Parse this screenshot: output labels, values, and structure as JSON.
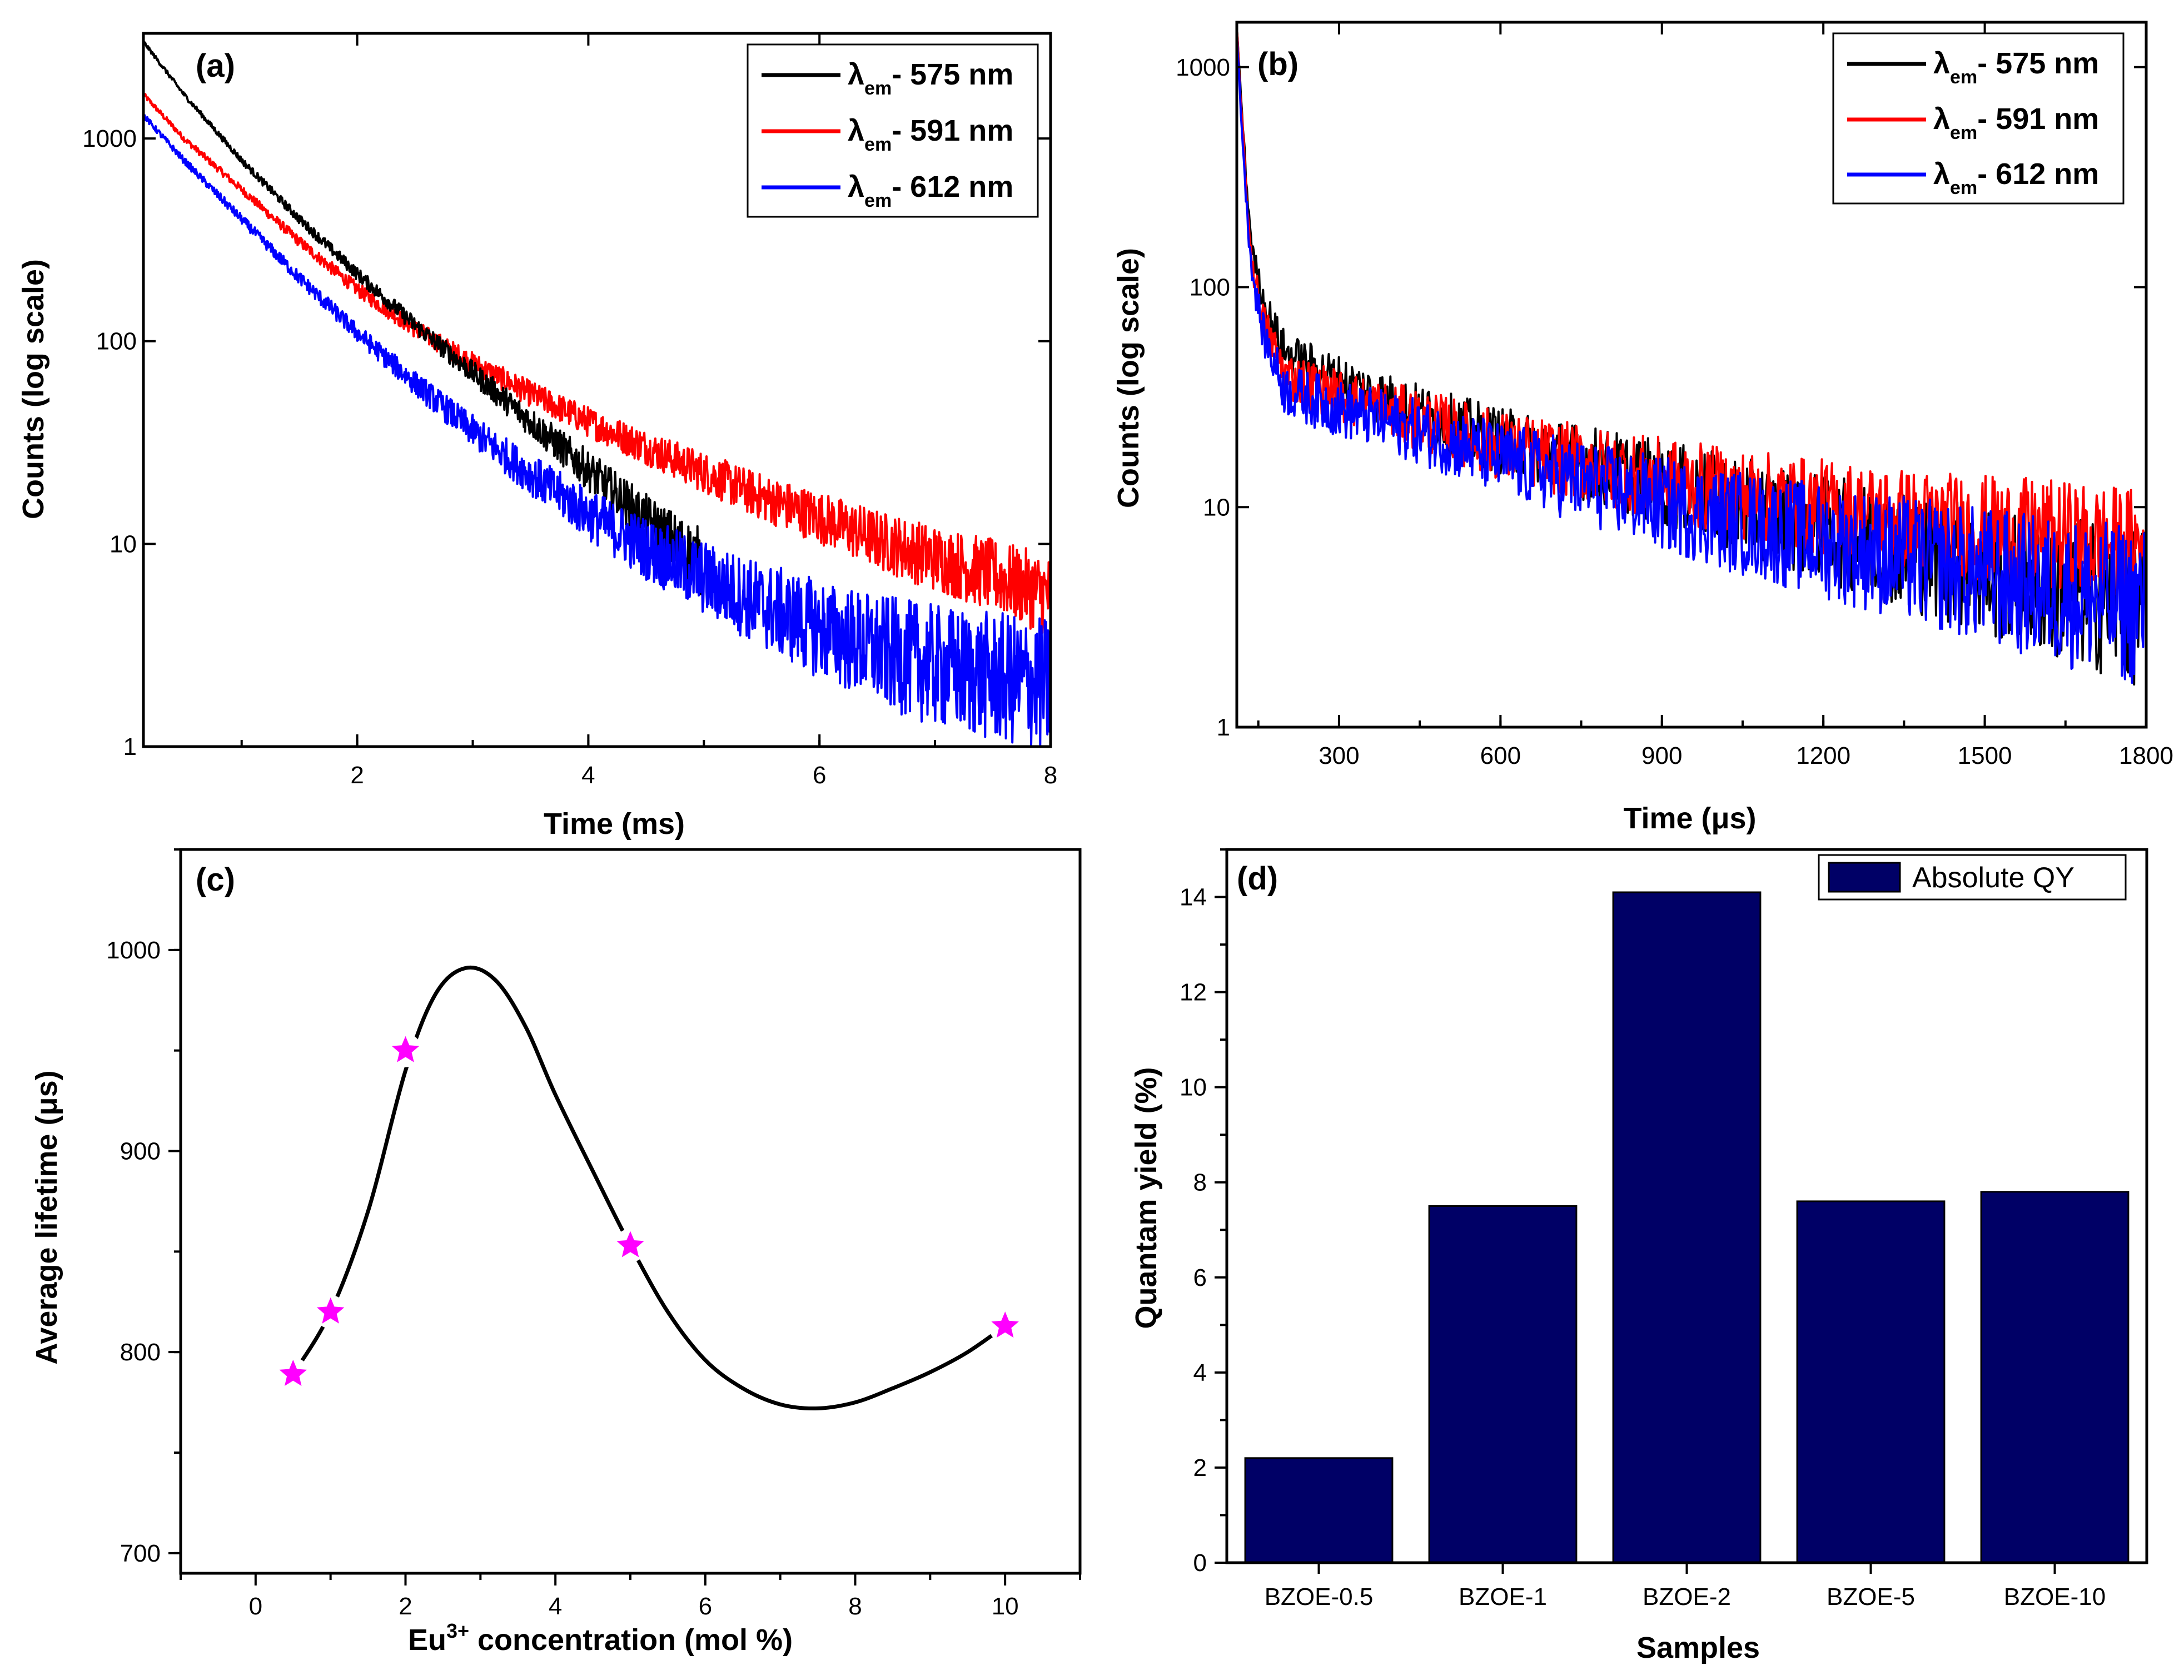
{
  "chart_data": [
    {
      "id": "a",
      "type": "line",
      "panel_label": "(a)",
      "xlabel": "Time (ms)",
      "ylabel": "Counts (log scale)",
      "xscale": "linear",
      "yscale": "log",
      "xlim": [
        0.15,
        8
      ],
      "ylim": [
        1,
        3300
      ],
      "xticks": [
        2,
        4,
        6,
        8
      ],
      "xtick_labels": [
        "2",
        "4",
        "6",
        "8"
      ],
      "yticks": [
        1,
        10,
        100,
        1000
      ],
      "ytick_labels": [
        "1",
        "10",
        "100",
        "1000"
      ],
      "legend_position": "top-right",
      "series": [
        {
          "name": "575 nm",
          "legend_prefix": "λ",
          "legend_sub": "em",
          "legend_suffix": "- 575 nm",
          "color": "#000000",
          "x": [
            0.15,
            0.5,
            1,
            1.5,
            2,
            2.5,
            3,
            3.5,
            4,
            4.5,
            5
          ],
          "y": [
            3000,
            1650,
            780,
            400,
            215,
            120,
            70,
            40,
            23,
            13,
            8
          ]
        },
        {
          "name": "591 nm",
          "legend_prefix": "λ",
          "legend_sub": "em",
          "legend_suffix": "- 591 nm",
          "color": "#ff0000",
          "x": [
            0.15,
            0.5,
            1,
            1.5,
            2,
            2.5,
            3,
            3.5,
            4,
            4.5,
            5,
            5.5,
            6,
            6.5,
            7,
            7.5,
            8
          ],
          "y": [
            1650,
            1000,
            560,
            310,
            180,
            115,
            78,
            55,
            40,
            30,
            22.5,
            17,
            13.5,
            10.5,
            8.5,
            7,
            5.5
          ]
        },
        {
          "name": "612 nm",
          "legend_prefix": "λ",
          "legend_sub": "em",
          "legend_suffix": "- 612 nm",
          "color": "#0000ff",
          "x": [
            0.15,
            0.5,
            1,
            1.5,
            2,
            2.5,
            3,
            3.5,
            4,
            4.5,
            5,
            5.5,
            6,
            6.5,
            7,
            7.5,
            8
          ],
          "y": [
            1300,
            780,
            400,
            205,
            110,
            62,
            36,
            22,
            14,
            9.5,
            6.8,
            5,
            3.8,
            3,
            2.5,
            2.2,
            2
          ]
        }
      ]
    },
    {
      "id": "b",
      "type": "line",
      "panel_label": "(b)",
      "xlabel": "Time (μs)",
      "ylabel": "Counts (log scale)",
      "xscale": "linear",
      "yscale": "log",
      "xlim": [
        110,
        1800
      ],
      "ylim": [
        1,
        1600
      ],
      "xticks": [
        300,
        600,
        900,
        1200,
        1500,
        1800
      ],
      "xtick_labels": [
        "300",
        "600",
        "900",
        "1200",
        "1500",
        "1800"
      ],
      "yticks": [
        1,
        10,
        100,
        1000
      ],
      "ytick_labels": [
        "1",
        "10",
        "100",
        "1000"
      ],
      "legend_position": "top-right",
      "series": [
        {
          "name": "575 nm",
          "legend_prefix": "λ",
          "legend_sub": "em",
          "legend_suffix": "- 575 nm",
          "color": "#000000",
          "x": [
            110,
            120,
            130,
            140,
            160,
            200,
            300,
            400,
            500,
            600,
            800,
            1000,
            1200,
            1400,
            1600,
            1800
          ],
          "y": [
            1500,
            600,
            250,
            140,
            85,
            50,
            38,
            30,
            24,
            20,
            15,
            11,
            8,
            6,
            4.5,
            3.5
          ]
        },
        {
          "name": "591 nm",
          "legend_prefix": "λ",
          "legend_sub": "em",
          "legend_suffix": "- 591 nm",
          "color": "#ff0000",
          "x": [
            110,
            120,
            130,
            140,
            160,
            200,
            300,
            400,
            500,
            600,
            800,
            1000,
            1200,
            1400,
            1600,
            1800
          ],
          "y": [
            1500,
            550,
            220,
            120,
            70,
            40,
            32,
            27,
            23,
            19,
            15,
            12,
            10,
            8.5,
            7.5,
            6.5
          ]
        },
        {
          "name": "612 nm",
          "legend_prefix": "λ",
          "legend_sub": "em",
          "legend_suffix": "- 612 nm",
          "color": "#0000ff",
          "x": [
            110,
            120,
            130,
            140,
            160,
            200,
            300,
            400,
            500,
            600,
            800,
            1000,
            1200,
            1400,
            1600,
            1800
          ],
          "y": [
            1400,
            500,
            200,
            110,
            60,
            34,
            28,
            24,
            20,
            16.5,
            12,
            9,
            7,
            5.5,
            4.3,
            3.5
          ]
        }
      ]
    },
    {
      "id": "c",
      "type": "scatter",
      "panel_label": "(c)",
      "xlabel_main": "Eu",
      "xlabel_sup": "3+",
      "xlabel_rest": " concentration (mol %)",
      "ylabel": "Average lifetime (μs)",
      "xlim": [
        -1,
        11
      ],
      "ylim": [
        690,
        1050
      ],
      "xticks": [
        0,
        2,
        4,
        6,
        8,
        10
      ],
      "xtick_labels": [
        "0",
        "2",
        "4",
        "6",
        "8",
        "10"
      ],
      "yticks": [
        700,
        800,
        900,
        1000
      ],
      "ytick_labels": [
        "700",
        "800",
        "900",
        "1000"
      ],
      "points": {
        "x": [
          0.5,
          1,
          2,
          5,
          10
        ],
        "y": [
          789,
          820,
          950,
          853,
          813
        ],
        "color": "#ff00ff",
        "marker": "star"
      },
      "fit_curve": {
        "x": [
          0.5,
          1,
          1.5,
          2,
          2.4,
          2.8,
          3.2,
          3.6,
          4,
          4.5,
          5,
          5.5,
          6,
          6.5,
          7,
          7.5,
          8,
          8.5,
          9,
          9.5,
          10
        ],
        "y": [
          789,
          820,
          870,
          940,
          978,
          991,
          985,
          962,
          928,
          890,
          853,
          820,
          796,
          782,
          774,
          772,
          775,
          782,
          790,
          800,
          813
        ],
        "color": "#000000"
      }
    },
    {
      "id": "d",
      "type": "bar",
      "panel_label": "(d)",
      "xlabel": "Samples",
      "ylabel": "Quantam yield (%)",
      "ylim": [
        0,
        15
      ],
      "yticks": [
        0,
        2,
        4,
        6,
        8,
        10,
        12,
        14
      ],
      "ytick_labels": [
        "0",
        "2",
        "4",
        "6",
        "8",
        "10",
        "12",
        "14"
      ],
      "categories": [
        "BZOE-0.5",
        "BZOE-1",
        "BZOE-2",
        "BZOE-5",
        "BZOE-10"
      ],
      "series": [
        {
          "name": "Absolute QY",
          "values": [
            2.2,
            7.5,
            14.1,
            7.6,
            7.8
          ],
          "color": "#000066"
        }
      ],
      "legend_position": "top-right"
    }
  ]
}
